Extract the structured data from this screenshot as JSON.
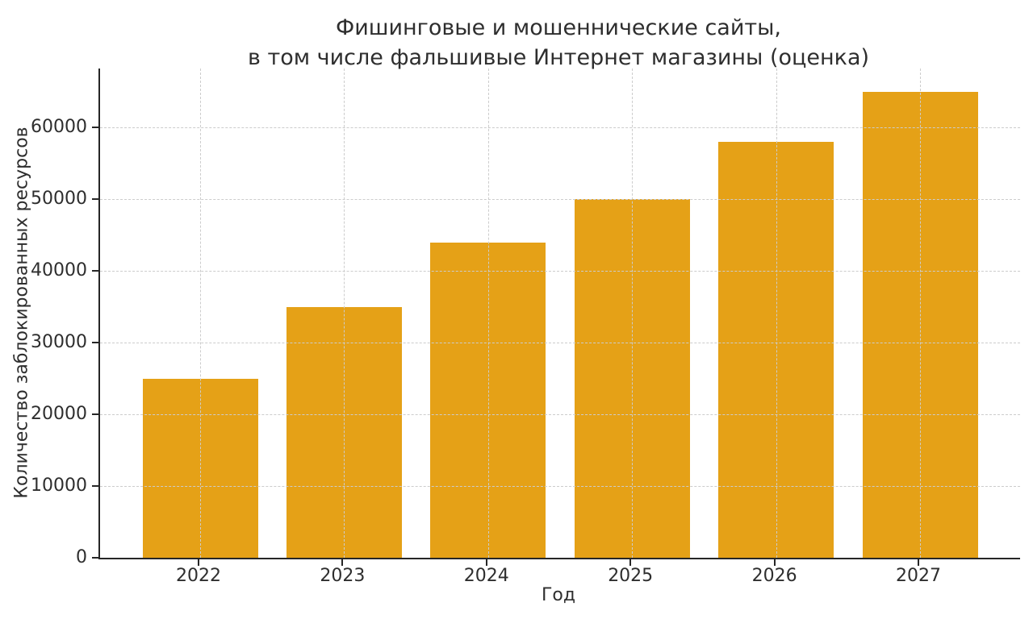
{
  "chart_data": {
    "type": "bar",
    "title": "Фишинговые и мошеннические сайты,\nв том числе фальшивые Интернет магазины (оценка)",
    "xlabel": "Год",
    "ylabel": "Количество заблокированных ресурсов",
    "categories": [
      "2022",
      "2023",
      "2024",
      "2025",
      "2026",
      "2027"
    ],
    "values": [
      25000,
      35000,
      44000,
      50000,
      58000,
      65000
    ],
    "yticks": [
      0,
      10000,
      20000,
      30000,
      40000,
      50000,
      60000
    ],
    "ylim": [
      0,
      68250
    ],
    "grid": "dashed both directions, drawn over bars",
    "legend": "none",
    "bar_color": "#E5A117",
    "text_color": "#2E2E2E",
    "axis_color": "#262626",
    "grid_color": "#CCCCCC",
    "background_color": "#FFFFFF"
  }
}
